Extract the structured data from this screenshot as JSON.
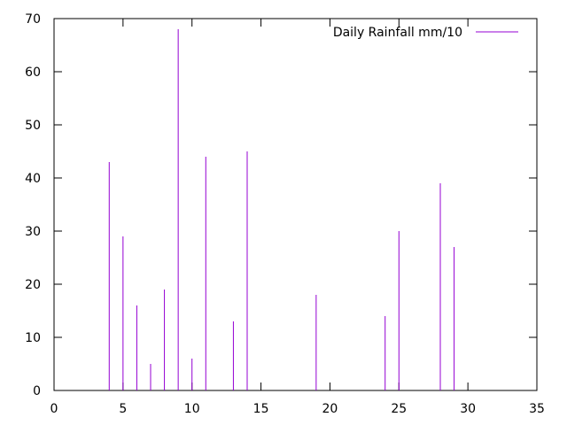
{
  "chart_data": {
    "type": "bar",
    "style": "impulses",
    "series": [
      {
        "name": "Daily Rainfall mm/10",
        "color": "#9400d3",
        "points": [
          {
            "x": 4,
            "y": 43
          },
          {
            "x": 5,
            "y": 29
          },
          {
            "x": 6,
            "y": 16
          },
          {
            "x": 7,
            "y": 5
          },
          {
            "x": 8,
            "y": 19
          },
          {
            "x": 9,
            "y": 68
          },
          {
            "x": 10,
            "y": 6
          },
          {
            "x": 11,
            "y": 44
          },
          {
            "x": 13,
            "y": 13
          },
          {
            "x": 14,
            "y": 45
          },
          {
            "x": 19,
            "y": 18
          },
          {
            "x": 24,
            "y": 14
          },
          {
            "x": 25,
            "y": 30
          },
          {
            "x": 28,
            "y": 39
          },
          {
            "x": 29,
            "y": 27
          }
        ]
      }
    ],
    "xlim": [
      0,
      35
    ],
    "ylim": [
      0,
      70
    ],
    "x_ticks": [
      "0",
      "5",
      "10",
      "15",
      "20",
      "25",
      "30",
      "35"
    ],
    "y_ticks": [
      "0",
      "10",
      "20",
      "30",
      "40",
      "50",
      "60",
      "70"
    ],
    "title": "",
    "xlabel": "",
    "ylabel": "",
    "grid": false,
    "legend_position": "top-right"
  }
}
